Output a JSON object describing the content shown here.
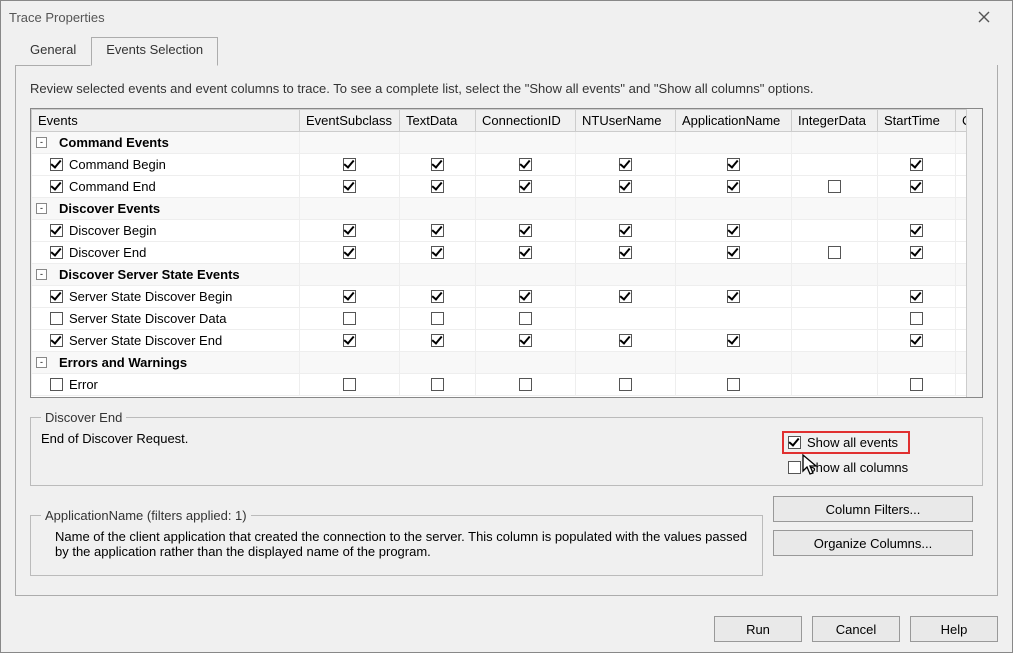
{
  "window": {
    "title": "Trace Properties"
  },
  "tabs": {
    "general": "General",
    "events": "Events Selection",
    "active": 1
  },
  "intro": "Review selected events and event columns to trace. To see a complete list, select the \"Show all events\" and \"Show all columns\" options.",
  "columns": [
    "Events",
    "EventSubclass",
    "TextData",
    "ConnectionID",
    "NTUserName",
    "ApplicationName",
    "IntegerData",
    "StartTime",
    "C"
  ],
  "groups": [
    {
      "name": "Command Events",
      "expanded": true,
      "rows": [
        {
          "name": "Command Begin",
          "enabled": true,
          "cells": [
            true,
            true,
            true,
            true,
            true,
            null,
            true
          ]
        },
        {
          "name": "Command End",
          "enabled": true,
          "cells": [
            true,
            true,
            true,
            true,
            true,
            false,
            true
          ]
        }
      ]
    },
    {
      "name": "Discover Events",
      "expanded": true,
      "rows": [
        {
          "name": "Discover Begin",
          "enabled": true,
          "cells": [
            true,
            true,
            true,
            true,
            true,
            null,
            true
          ]
        },
        {
          "name": "Discover End",
          "enabled": true,
          "cells": [
            true,
            true,
            true,
            true,
            true,
            false,
            true
          ]
        }
      ]
    },
    {
      "name": "Discover Server State Events",
      "expanded": true,
      "rows": [
        {
          "name": "Server State Discover Begin",
          "enabled": true,
          "cells": [
            true,
            true,
            true,
            true,
            true,
            null,
            true
          ]
        },
        {
          "name": "Server State Discover Data",
          "enabled": false,
          "cells": [
            false,
            false,
            false,
            null,
            null,
            null,
            false
          ]
        },
        {
          "name": "Server State Discover End",
          "enabled": true,
          "cells": [
            true,
            true,
            true,
            true,
            true,
            null,
            true
          ]
        }
      ]
    },
    {
      "name": "Errors and Warnings",
      "expanded": true,
      "rows": [
        {
          "name": "Error",
          "enabled": false,
          "cells": [
            false,
            false,
            false,
            false,
            false,
            null,
            false
          ],
          "partial": true
        }
      ]
    }
  ],
  "detail1": {
    "legend": "Discover End",
    "text": "End of Discover Request."
  },
  "options": {
    "show_all_events": {
      "label": "Show all events",
      "checked": true,
      "highlighted": true
    },
    "show_all_columns": {
      "label": "Show all columns",
      "checked": false
    }
  },
  "detail2": {
    "legend": "ApplicationName (filters applied: 1)",
    "text": "Name of the client application that created the connection to the server. This column is populated with the values passed by the application rather than the displayed name of the program."
  },
  "side_buttons": {
    "filters": "Column Filters...",
    "organize": "Organize Columns..."
  },
  "bottom": {
    "run": "Run",
    "cancel": "Cancel",
    "help": "Help"
  },
  "colors": {
    "highlight": "#e03030",
    "border": "#888888"
  }
}
